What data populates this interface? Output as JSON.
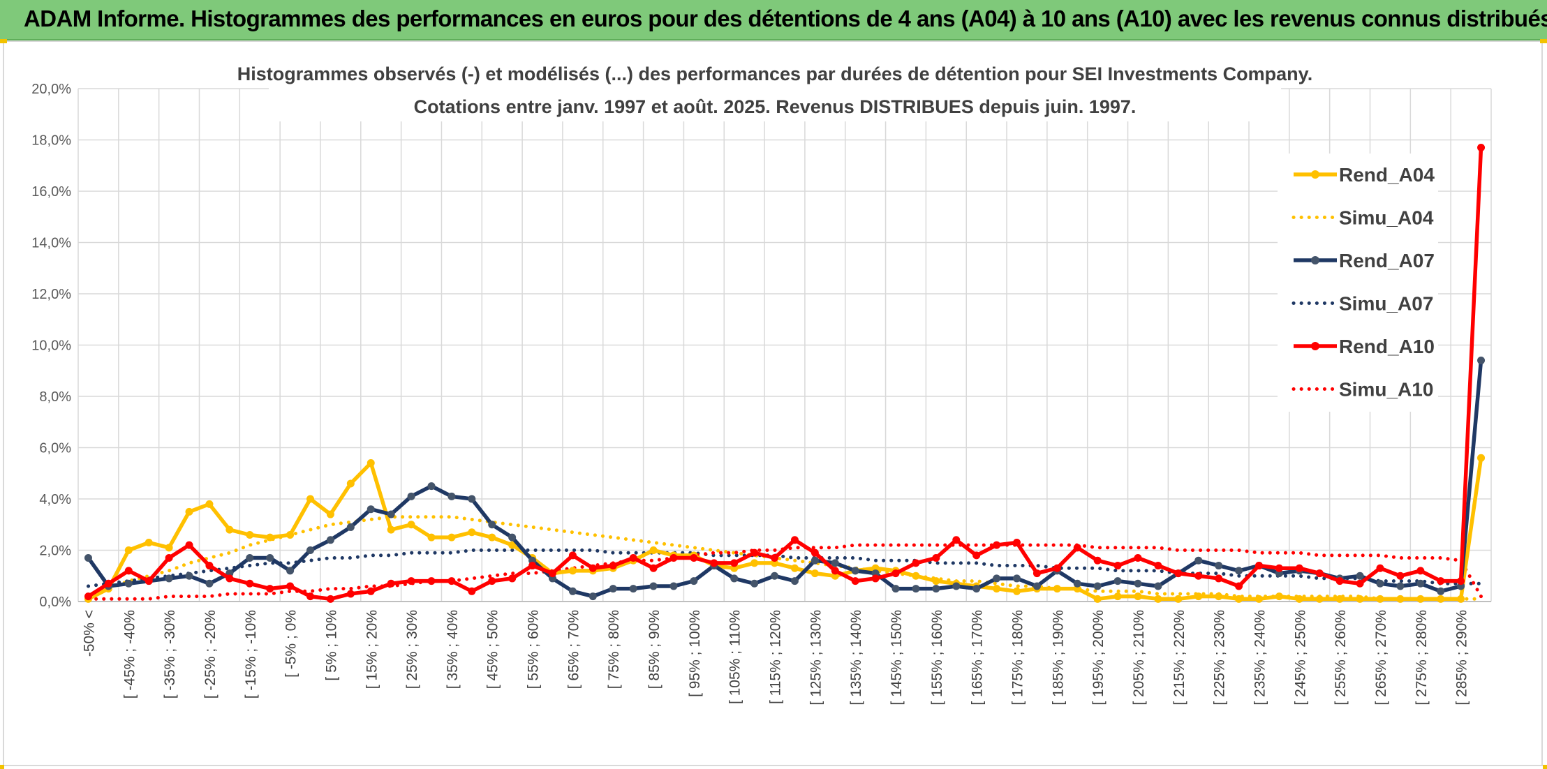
{
  "header": {
    "title": "ADAM Informe. Histogrammes des performances en euros pour des détentions de 4 ans (A04) à 10 ans (A10) avec les revenus connus distribués"
  },
  "chart_data": {
    "type": "line",
    "title_lines": [
      "Histogrammes observés (-) et modélisés (...) des performances par durées de détention pour SEI Investments Company.",
      "Cotations entre janv. 1997 et août. 2025. Revenus DISTRIBUES depuis juin. 1997."
    ],
    "xlabel": "",
    "ylabel": "",
    "ylim": [
      0,
      20
    ],
    "y_ticks": [
      "0,0%",
      "2,0%",
      "4,0%",
      "6,0%",
      "8,0%",
      "10,0%",
      "12,0%",
      "14,0%",
      "16,0%",
      "18,0%",
      "20,0%"
    ],
    "grid": true,
    "legend_position": "right",
    "x_tick_labels": [
      "-50% <",
      "[ -45% ; -40%",
      "[ -35% ; -30%",
      "[ -25% ; -20%",
      "[ -15% ; -10%",
      "[ -5% ; 0%",
      "[ 5% ; 10%",
      "[ 15% ; 20%",
      "[ 25% ; 30%",
      "[ 35% ; 40%",
      "[ 45% ; 50%",
      "[ 55% ; 60%",
      "[ 65% ; 70%",
      "[ 75% ; 80%",
      "[ 85% ; 90%",
      "[ 95% ; 100%",
      "[ 105% ; 110%",
      "[ 115% ; 120%",
      "[ 125% ; 130%",
      "[ 135% ; 140%",
      "[ 145% ; 150%",
      "[ 155% ; 160%",
      "[ 165% ; 170%",
      "[ 175% ; 180%",
      "[ 185% ; 190%",
      "[ 195% ; 200%",
      "[ 205% ; 210%",
      "[ 215% ; 220%",
      "[ 225% ; 230%",
      "[ 235% ; 240%",
      "[ 245% ; 250%",
      "[ 255% ; 260%",
      "[ 265% ; 270%",
      "[ 275% ; 280%",
      "[ 285% ; 290%"
    ],
    "n_categories": 70,
    "colors": {
      "A04": "#ffc000",
      "A07": "#1f3864",
      "A10": "#ff0000",
      "A07_marker": "#44546a"
    },
    "series": [
      {
        "name": "Rend_A04",
        "style": "solid",
        "color_key": "A04",
        "values": [
          0.1,
          0.5,
          2.0,
          2.3,
          2.1,
          3.5,
          3.8,
          2.8,
          2.6,
          2.5,
          2.6,
          4.0,
          3.4,
          4.6,
          5.4,
          2.8,
          3.0,
          2.5,
          2.5,
          2.7,
          2.5,
          2.2,
          1.7,
          1.1,
          1.2,
          1.2,
          1.3,
          1.6,
          2.0,
          1.8,
          1.8,
          1.4,
          1.3,
          1.5,
          1.5,
          1.3,
          1.1,
          1.0,
          1.2,
          1.3,
          1.2,
          1.0,
          0.8,
          0.7,
          0.6,
          0.5,
          0.4,
          0.5,
          0.5,
          0.5,
          0.1,
          0.2,
          0.2,
          0.1,
          0.1,
          0.2,
          0.2,
          0.1,
          0.1,
          0.2,
          0.1,
          0.1,
          0.1,
          0.1,
          0.1,
          0.1,
          0.1,
          0.1,
          0.1,
          5.6
        ]
      },
      {
        "name": "Simu_A04",
        "style": "dotted",
        "color_key": "A04",
        "values": [
          0.2,
          0.5,
          0.8,
          1.0,
          1.2,
          1.5,
          1.7,
          1.9,
          2.2,
          2.4,
          2.6,
          2.8,
          3.0,
          3.1,
          3.2,
          3.3,
          3.3,
          3.3,
          3.3,
          3.2,
          3.1,
          3.0,
          2.9,
          2.8,
          2.7,
          2.6,
          2.5,
          2.4,
          2.3,
          2.2,
          2.1,
          2.0,
          1.9,
          1.8,
          1.7,
          1.6,
          1.5,
          1.4,
          1.3,
          1.2,
          1.1,
          1.0,
          0.9,
          0.8,
          0.8,
          0.7,
          0.6,
          0.6,
          0.5,
          0.5,
          0.4,
          0.4,
          0.4,
          0.3,
          0.3,
          0.3,
          0.3,
          0.2,
          0.2,
          0.2,
          0.2,
          0.2,
          0.2,
          0.2,
          0.1,
          0.1,
          0.1,
          0.1,
          0.1,
          0.1
        ]
      },
      {
        "name": "Rend_A07",
        "style": "solid",
        "color_key": "A07",
        "values": [
          1.7,
          0.6,
          0.7,
          0.8,
          0.9,
          1.0,
          0.7,
          1.1,
          1.7,
          1.7,
          1.2,
          2.0,
          2.4,
          2.9,
          3.6,
          3.4,
          4.1,
          4.5,
          4.1,
          4.0,
          3.0,
          2.5,
          1.6,
          0.9,
          0.4,
          0.2,
          0.5,
          0.5,
          0.6,
          0.6,
          0.8,
          1.4,
          0.9,
          0.7,
          1.0,
          0.8,
          1.6,
          1.5,
          1.2,
          1.1,
          0.5,
          0.5,
          0.5,
          0.6,
          0.5,
          0.9,
          0.9,
          0.6,
          1.2,
          0.7,
          0.6,
          0.8,
          0.7,
          0.6,
          1.1,
          1.6,
          1.4,
          1.2,
          1.4,
          1.1,
          1.2,
          1.1,
          0.9,
          1.0,
          0.7,
          0.6,
          0.7,
          0.4,
          0.6,
          9.4
        ]
      },
      {
        "name": "Simu_A07",
        "style": "dotted",
        "color_key": "A07",
        "values": [
          0.6,
          0.7,
          0.8,
          0.9,
          1.0,
          1.1,
          1.2,
          1.3,
          1.4,
          1.5,
          1.5,
          1.6,
          1.7,
          1.7,
          1.8,
          1.8,
          1.9,
          1.9,
          1.9,
          2.0,
          2.0,
          2.0,
          2.0,
          2.0,
          2.0,
          2.0,
          1.9,
          1.9,
          1.9,
          1.9,
          1.9,
          1.8,
          1.8,
          1.8,
          1.8,
          1.7,
          1.7,
          1.7,
          1.7,
          1.6,
          1.6,
          1.6,
          1.5,
          1.5,
          1.5,
          1.4,
          1.4,
          1.4,
          1.3,
          1.3,
          1.3,
          1.2,
          1.2,
          1.2,
          1.1,
          1.1,
          1.1,
          1.0,
          1.0,
          1.0,
          1.0,
          0.9,
          0.9,
          0.9,
          0.8,
          0.8,
          0.8,
          0.7,
          0.7,
          0.7
        ]
      },
      {
        "name": "Rend_A10",
        "style": "solid",
        "color_key": "A10",
        "values": [
          0.2,
          0.7,
          1.2,
          0.8,
          1.7,
          2.2,
          1.4,
          0.9,
          0.7,
          0.5,
          0.6,
          0.2,
          0.1,
          0.3,
          0.4,
          0.7,
          0.8,
          0.8,
          0.8,
          0.4,
          0.8,
          0.9,
          1.4,
          1.1,
          1.8,
          1.3,
          1.4,
          1.7,
          1.3,
          1.7,
          1.7,
          1.5,
          1.5,
          1.9,
          1.7,
          2.4,
          1.9,
          1.2,
          0.8,
          0.9,
          1.1,
          1.5,
          1.7,
          2.4,
          1.8,
          2.2,
          2.3,
          1.1,
          1.3,
          2.1,
          1.6,
          1.4,
          1.7,
          1.4,
          1.1,
          1.0,
          0.9,
          0.6,
          1.4,
          1.3,
          1.3,
          1.1,
          0.8,
          0.7,
          1.3,
          1.0,
          1.2,
          0.8,
          0.8,
          17.7
        ]
      },
      {
        "name": "Simu_A10",
        "style": "dotted",
        "color_key": "A10",
        "values": [
          0.1,
          0.1,
          0.1,
          0.1,
          0.2,
          0.2,
          0.2,
          0.3,
          0.3,
          0.3,
          0.4,
          0.4,
          0.5,
          0.5,
          0.6,
          0.6,
          0.7,
          0.8,
          0.8,
          0.9,
          1.0,
          1.1,
          1.1,
          1.2,
          1.3,
          1.4,
          1.5,
          1.6,
          1.6,
          1.7,
          1.8,
          1.9,
          1.9,
          2.0,
          2.0,
          2.1,
          2.1,
          2.1,
          2.2,
          2.2,
          2.2,
          2.2,
          2.2,
          2.2,
          2.2,
          2.2,
          2.2,
          2.2,
          2.2,
          2.2,
          2.1,
          2.1,
          2.1,
          2.1,
          2.0,
          2.0,
          2.0,
          2.0,
          1.9,
          1.9,
          1.9,
          1.8,
          1.8,
          1.8,
          1.8,
          1.7,
          1.7,
          1.7,
          1.6,
          0.2
        ]
      }
    ]
  }
}
